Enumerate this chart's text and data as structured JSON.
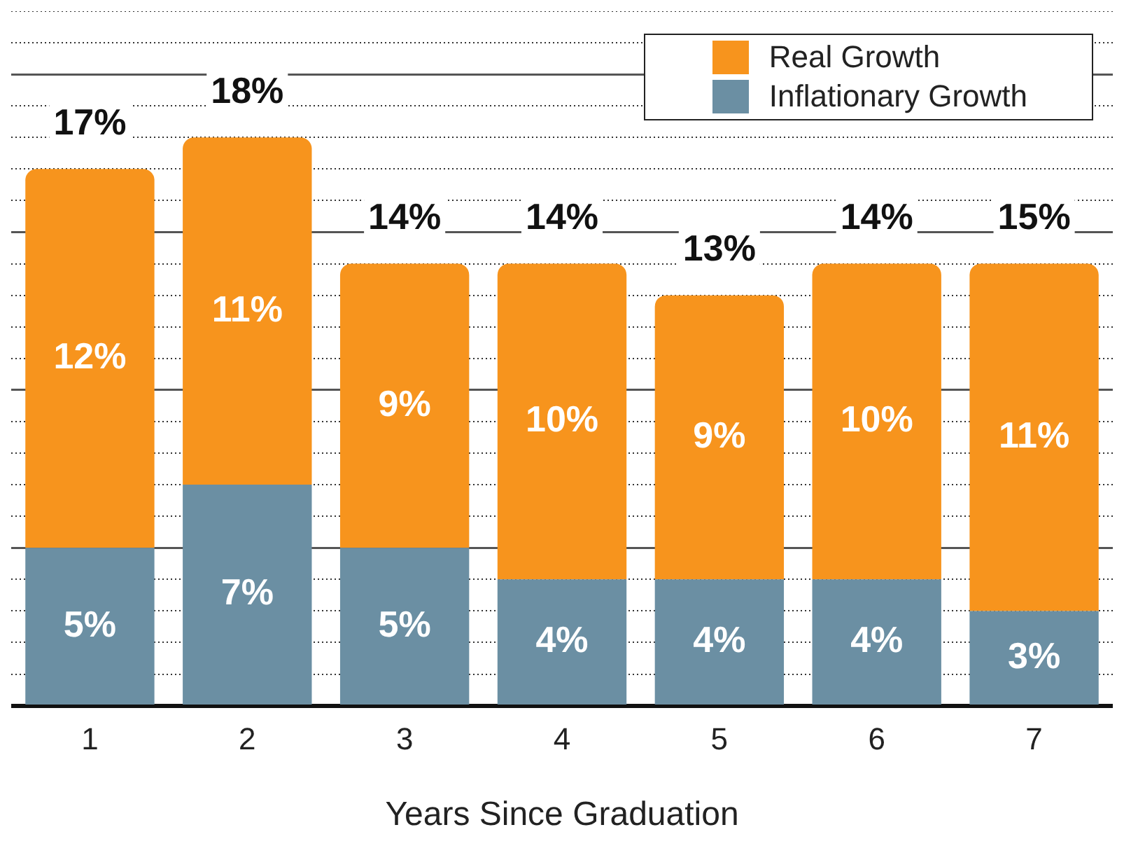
{
  "chart_data": {
    "type": "bar",
    "stacked": true,
    "xlabel": "Years Since Graduation",
    "categories": [
      "1",
      "2",
      "3",
      "4",
      "5",
      "6",
      "7"
    ],
    "series": [
      {
        "name": "Inflationary Growth",
        "color": "#6b8fa3",
        "values": [
          5,
          7,
          5,
          4,
          4,
          4,
          3
        ],
        "value_labels": [
          "5%",
          "7%",
          "5%",
          "4%",
          "4%",
          "4%",
          "3%"
        ]
      },
      {
        "name": "Real Growth",
        "color": "#f7941d",
        "values": [
          12,
          11,
          9,
          10,
          9,
          10,
          11
        ],
        "value_labels": [
          "12%",
          "11%",
          "9%",
          "10%",
          "9%",
          "10%",
          "11%"
        ]
      }
    ],
    "totals": [
      "17%",
      "18%",
      "14%",
      "14%",
      "13%",
      "14%",
      "15%"
    ],
    "tick_labels": "x",
    "grid": "y",
    "legend": "top right"
  }
}
